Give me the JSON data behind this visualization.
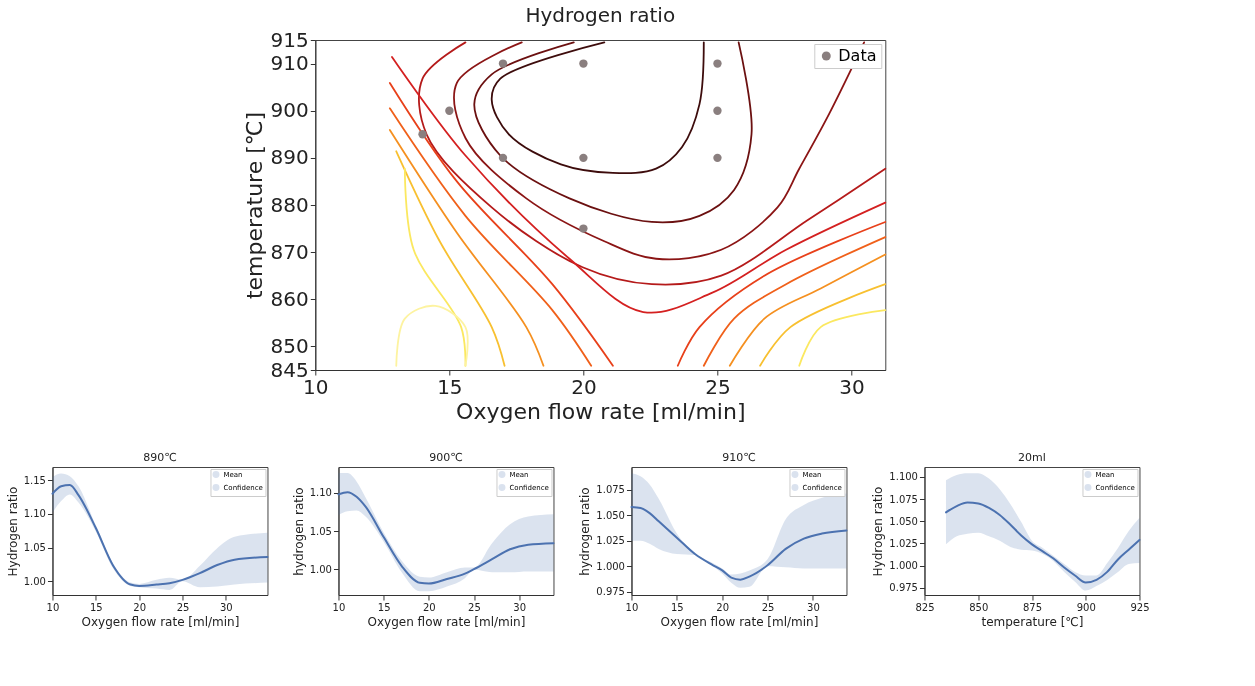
{
  "chart_data": [
    {
      "type": "line",
      "title": "Hydrogen ratio",
      "xlabel": "Oxygen flow rate [ml/min]",
      "ylabel": "temperature [℃]",
      "xlim": [
        10,
        31.26
      ],
      "ylim": [
        845,
        915
      ],
      "xticks": [
        10,
        15,
        20,
        25,
        30
      ],
      "yticks": [
        845,
        850,
        860,
        870,
        880,
        890,
        900,
        910,
        915
      ],
      "grid": false,
      "legend": "top right",
      "series": [
        {
          "color": "#3d0c0c",
          "x": [
            20.78,
            16.9,
            16.58,
            17.22,
            19.16,
            21.1,
            22.71,
            23.68,
            24.33,
            24.49
          ],
          "values": [
            914.5,
            906.8,
            902.3,
            895.0,
            888.6,
            886.8,
            887.7,
            892.3,
            901.4,
            914.5
          ]
        },
        {
          "color": "#6b1010",
          "x": [
            19.64,
            16.58,
            15.93,
            16.9,
            19.48,
            22.55,
            24.33,
            25.62,
            26.27,
            25.79
          ],
          "values": [
            914.5,
            907.7,
            901.4,
            890.5,
            881.4,
            876.4,
            877.7,
            883.2,
            895.0,
            914.5
          ]
        },
        {
          "color": "#8b1515",
          "x": [
            17.7,
            15.28,
            15.61,
            17.87,
            20.78,
            22.71,
            25.14,
            27.24,
            28.05,
            29.18,
            30.47
          ],
          "values": [
            914.5,
            905.9,
            894.1,
            881.4,
            872.3,
            868.6,
            870.5,
            879.5,
            887.7,
            899.5,
            914.5
          ]
        },
        {
          "color": "#b51a1a",
          "x": [
            15.6,
            14.0,
            14.15,
            16.58,
            19.97,
            22.55,
            25.14,
            28.37,
            31.26
          ],
          "values": [
            914.5,
            906.8,
            895.0,
            879.5,
            866.8,
            863.2,
            865.0,
            876.8,
            887.7
          ]
        },
        {
          "color": "#d42020",
          "x": [
            12.86,
            15.6,
            19.48,
            22.23,
            24.81,
            27.56,
            31.26
          ],
          "values": [
            911.4,
            890.5,
            868.6,
            857.3,
            861.4,
            870.5,
            880.5
          ]
        },
        {
          "color": "#e8401a",
          "x": [
            12.78,
            15.28,
            18.84,
            21.1
          ],
          "values": [
            905.9,
            885.0,
            863.2,
            845.9
          ]
        },
        {
          "color": "#e8401a",
          "x": [
            23.52,
            24.33,
            26.75,
            31.26
          ],
          "values": [
            845.9,
            854.1,
            865.0,
            876.4
          ]
        },
        {
          "color": "#f0601a",
          "x": [
            12.78,
            15.6,
            18.84,
            20.29
          ],
          "values": [
            900.5,
            877.7,
            857.7,
            845.9
          ]
        },
        {
          "color": "#f0601a",
          "x": [
            24.49,
            25.62,
            27.56,
            31.26
          ],
          "values": [
            845.9,
            855.9,
            863.2,
            873.2
          ]
        },
        {
          "color": "#f59020",
          "x": [
            12.78,
            15.28,
            17.87,
            18.51
          ],
          "values": [
            895.9,
            874.1,
            854.1,
            845.9
          ]
        },
        {
          "color": "#f59020",
          "x": [
            25.46,
            26.75,
            28.85,
            31.26
          ],
          "values": [
            845.9,
            855.9,
            862.3,
            869.5
          ]
        },
        {
          "color": "#f8c030",
          "x": [
            13.02,
            14.64,
            16.58,
            17.06
          ],
          "values": [
            891.4,
            872.3,
            854.1,
            845.9
          ]
        },
        {
          "color": "#f8c030",
          "x": [
            26.59,
            27.72,
            31.26
          ],
          "values": [
            845.9,
            854.1,
            863.2
          ]
        },
        {
          "color": "#fbe860",
          "x": [
            13.34,
            13.67,
            15.44,
            15.6
          ],
          "values": [
            887.7,
            870.5,
            854.1,
            845.9
          ]
        },
        {
          "color": "#fbe860",
          "x": [
            28.05,
            28.85,
            31.26
          ],
          "values": [
            845.9,
            854.1,
            857.7
          ]
        },
        {
          "color": "#fdf3a0",
          "x": [
            13.02,
            13.34,
            14.48,
            15.6,
            15.6
          ],
          "values": [
            845.9,
            855.9,
            858.6,
            854.1,
            845.9
          ]
        },
        {
          "name": "Data",
          "type": "scatter",
          "marker": "circle",
          "color": "#8a7f7f",
          "x": [
            17,
            20,
            25,
            15,
            25,
            14,
            17,
            20,
            25,
            20
          ],
          "values": [
            910,
            910,
            910,
            900,
            900,
            895,
            890,
            890,
            890,
            875
          ]
        }
      ]
    },
    {
      "type": "line",
      "title": "890℃",
      "xlabel": "Oxygen flow rate [ml/min]",
      "ylabel": "Hydrogen ratio",
      "xlim": [
        10,
        34.8
      ],
      "ylim": [
        0.9795,
        1.1697
      ],
      "xticks": [
        10,
        15,
        20,
        25,
        30
      ],
      "yticks": [
        {
          "value": 1.0,
          "label": "1.00"
        },
        {
          "value": 1.05,
          "label": "1.05"
        },
        {
          "value": 1.1,
          "label": "1.10"
        },
        {
          "value": 1.15,
          "label": "1.15"
        }
      ],
      "grid": false,
      "legend": "top right",
      "annotations": [
        "Confidence"
      ],
      "x": [
        10,
        11,
        12,
        13,
        15,
        17,
        19,
        20,
        22,
        23.5,
        25,
        27,
        29,
        31,
        34.8
      ],
      "series": [
        {
          "name": "Mean",
          "color": "#4c72b0",
          "values": [
            1.13,
            1.141,
            1.143,
            1.128,
            1.079,
            1.023,
            0.995,
            0.993,
            0.995,
            0.997,
            1.002,
            1.012,
            1.024,
            1.032,
            1.036
          ],
          "lower": [
            1.102,
            1.119,
            1.129,
            1.117,
            1.074,
            1.019,
            0.993,
            0.991,
            0.989,
            0.987,
            1.0,
            0.991,
            0.992,
            0.995,
            0.998
          ],
          "upper": [
            1.155,
            1.16,
            1.156,
            1.141,
            1.083,
            1.026,
            0.998,
            0.996,
            1.002,
            1.005,
            1.002,
            1.023,
            1.049,
            1.066,
            1.072
          ]
        }
      ]
    },
    {
      "type": "line",
      "title": "900℃",
      "xlabel": "Oxygen flow rate [ml/min]",
      "ylabel": "hydrogen ratio",
      "xlim": [
        10,
        33.8
      ],
      "ylim": [
        0.966,
        1.134
      ],
      "xticks": [
        10,
        15,
        20,
        25,
        30
      ],
      "yticks": [
        {
          "value": 1.0,
          "label": "1.00"
        },
        {
          "value": 1.05,
          "label": "1.05"
        },
        {
          "value": 1.1,
          "label": "1.10"
        }
      ],
      "grid": false,
      "legend": "top right",
      "annotations": [
        "Confidence"
      ],
      "x": [
        10,
        11,
        12,
        13,
        15,
        17,
        19,
        20,
        22,
        24,
        25,
        27,
        29,
        31,
        33.8
      ],
      "series": [
        {
          "name": "Mean",
          "color": "#4c72b0",
          "values": [
            1.098,
            1.101,
            1.095,
            1.082,
            1.042,
            1.004,
            0.982,
            0.981,
            0.987,
            0.994,
            1.0,
            1.013,
            1.026,
            1.032,
            1.034
          ],
          "lower": [
            1.071,
            1.076,
            1.077,
            1.069,
            1.036,
            0.996,
            0.971,
            0.971,
            0.977,
            0.988,
            0.999,
            0.996,
            0.996,
            0.997,
            0.997
          ],
          "upper": [
            1.126,
            1.126,
            1.115,
            1.094,
            1.048,
            1.011,
            0.99,
            0.989,
            0.996,
            1.002,
            1.002,
            1.034,
            1.059,
            1.069,
            1.072
          ]
        }
      ]
    },
    {
      "type": "line",
      "title": "910℃",
      "xlabel": "Oxygen flow rate [ml/min]",
      "ylabel": "hydrogen ratio",
      "xlim": [
        10,
        33.7
      ],
      "ylim": [
        0.972,
        1.097
      ],
      "xticks": [
        10,
        15,
        20,
        25,
        30
      ],
      "yticks": [
        0.975,
        {
          "value": 1.0,
          "label": "1.000"
        },
        1.025,
        {
          "value": 1.05,
          "label": "1.050"
        },
        1.075
      ],
      "grid": false,
      "legend": "top right",
      "annotations": [
        "Confidence"
      ],
      "x": [
        10,
        11,
        12,
        13,
        15,
        17,
        19,
        20,
        21,
        22,
        23,
        25,
        27,
        29,
        31,
        33.7
      ],
      "series": [
        {
          "name": "Mean",
          "color": "#4c72b0",
          "values": [
            1.058,
            1.057,
            1.052,
            1.044,
            1.028,
            1.012,
            1.001,
            0.996,
            0.989,
            0.987,
            0.99,
            1.001,
            1.017,
            1.027,
            1.032,
            1.035
          ],
          "lower": [
            1.025,
            1.025,
            1.022,
            1.017,
            1.012,
            1.011,
            1.0,
            0.993,
            0.984,
            0.979,
            0.98,
            1.0,
            0.999,
            0.998,
            0.998,
            0.998
          ],
          "upper": [
            1.091,
            1.088,
            1.08,
            1.066,
            1.032,
            1.012,
            1.003,
            0.998,
            0.992,
            0.993,
            0.996,
            1.007,
            1.046,
            1.06,
            1.067,
            1.071
          ]
        }
      ]
    },
    {
      "type": "line",
      "title": "20ml",
      "xlabel": "temperature [℃]",
      "ylabel": "Hydrogen ratio",
      "xlim": [
        825,
        925
      ],
      "ylim": [
        0.967,
        1.111
      ],
      "xticks": [
        825,
        850,
        875,
        900,
        925
      ],
      "yticks": [
        0.975,
        {
          "value": 1.0,
          "label": "1.000"
        },
        1.025,
        {
          "value": 1.05,
          "label": "1.050"
        },
        1.075,
        {
          "value": 1.1,
          "label": "1.100"
        }
      ],
      "grid": false,
      "legend": "top right",
      "annotations": [
        "Confidence"
      ],
      "x": [
        835,
        840,
        845,
        850,
        855,
        860,
        865,
        870,
        875,
        880,
        885,
        890,
        895,
        900,
        905,
        910,
        915,
        920,
        925
      ],
      "series": [
        {
          "name": "Mean",
          "color": "#4c72b0",
          "values": [
            1.06,
            1.067,
            1.071,
            1.07,
            1.065,
            1.057,
            1.046,
            1.034,
            1.024,
            1.016,
            1.008,
            0.998,
            0.989,
            0.981,
            0.984,
            0.993,
            1.007,
            1.018,
            1.029
          ],
          "lower": [
            1.024,
            1.033,
            1.036,
            1.037,
            1.033,
            1.028,
            1.021,
            1.018,
            1.017,
            1.013,
            1.005,
            0.993,
            0.982,
            0.972,
            0.977,
            0.984,
            0.993,
            1.002,
            1.003
          ],
          "upper": [
            1.096,
            1.102,
            1.104,
            1.104,
            1.098,
            1.086,
            1.069,
            1.049,
            1.028,
            1.02,
            1.011,
            1.002,
            0.993,
            0.989,
            0.989,
            1.003,
            1.02,
            1.039,
            1.054
          ]
        }
      ]
    }
  ]
}
